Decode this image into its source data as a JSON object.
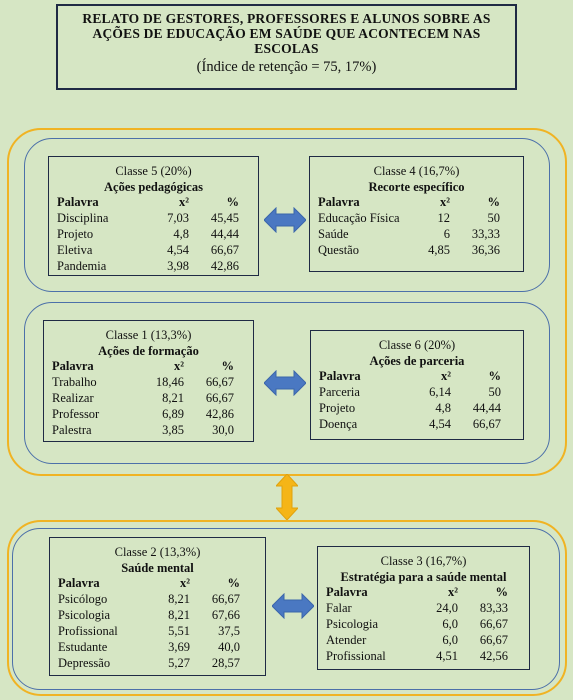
{
  "title": {
    "main": "RELATO DE GESTORES, PROFESSORES E ALUNOS SOBRE AS AÇÕES DE EDUCAÇÃO EM SAÚDE QUE ACONTECEM NAS ESCOLAS",
    "sub": "(Índice de retenção = 75, 17%)"
  },
  "columns": {
    "word": "Palavra",
    "chi": "x²",
    "pct": "%"
  },
  "colors": {
    "background": "#d6e6c4",
    "group_border": "#f0b323",
    "row_border": "#4c70a9",
    "arrow": "#4a78c2",
    "vertical_arrow": "#f5b517"
  },
  "classes": {
    "c5": {
      "label": "Classe 5 (20%)",
      "name": "Ações pedagógicas",
      "rows": [
        {
          "w": "Disciplina",
          "x": "7,03",
          "p": "45,45"
        },
        {
          "w": "Projeto",
          "x": "4,8",
          "p": "44,44"
        },
        {
          "w": "Eletiva",
          "x": "4,54",
          "p": "66,67"
        },
        {
          "w": "Pandemia",
          "x": "3,98",
          "p": "42,86"
        }
      ]
    },
    "c4": {
      "label": "Classe 4 (16,7%)",
      "name": "Recorte específico",
      "rows": [
        {
          "w": "Educação Física",
          "x": "12",
          "p": "50"
        },
        {
          "w": "Saúde",
          "x": "6",
          "p": "33,33"
        },
        {
          "w": "Questão",
          "x": "4,85",
          "p": "36,36"
        }
      ]
    },
    "c1": {
      "label": "Classe 1 (13,3%)",
      "name": "Ações de formação",
      "rows": [
        {
          "w": "Trabalho",
          "x": "18,46",
          "p": "66,67"
        },
        {
          "w": "Realizar",
          "x": "8,21",
          "p": "66,67"
        },
        {
          "w": "Professor",
          "x": "6,89",
          "p": "42,86"
        },
        {
          "w": "Palestra",
          "x": "3,85",
          "p": "30,0"
        }
      ]
    },
    "c6": {
      "label": "Classe 6 (20%)",
      "name": "Ações de parceria",
      "rows": [
        {
          "w": "Parceria",
          "x": "6,14",
          "p": "50"
        },
        {
          "w": "Projeto",
          "x": "4,8",
          "p": "44,44"
        },
        {
          "w": "Doença",
          "x": "4,54",
          "p": "66,67"
        }
      ]
    },
    "c2": {
      "label": "Classe 2 (13,3%)",
      "name": "Saúde mental",
      "rows": [
        {
          "w": "Psicólogo",
          "x": "8,21",
          "p": "66,67"
        },
        {
          "w": "Psicologia",
          "x": "8,21",
          "p": "67,66"
        },
        {
          "w": "Profissional",
          "x": "5,51",
          "p": "37,5"
        },
        {
          "w": "Estudante",
          "x": "3,69",
          "p": "40,0"
        },
        {
          "w": "Depressão",
          "x": "5,27",
          "p": "28,57"
        }
      ]
    },
    "c3": {
      "label": "Classe 3 (16,7%)",
      "name": "Estratégia para a saúde mental",
      "rows": [
        {
          "w": "Falar",
          "x": "24,0",
          "p": "83,33"
        },
        {
          "w": "Psicologia",
          "x": "6,0",
          "p": "66,67"
        },
        {
          "w": "Atender",
          "x": "6,0",
          "p": "66,67"
        },
        {
          "w": "Profissional",
          "x": "4,51",
          "p": "42,56"
        }
      ]
    }
  }
}
